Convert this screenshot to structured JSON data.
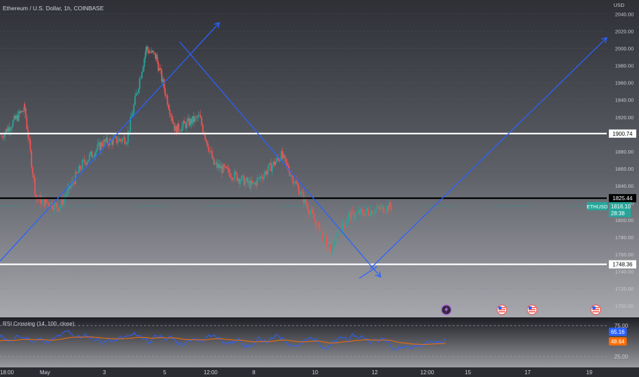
{
  "header": {
    "symbol_title": "Ethereum / U.S. Dollar, 1h, COINBASE",
    "currency": "USD"
  },
  "price_axis": {
    "ticks": [
      1700,
      1720,
      1740,
      1760,
      1780,
      1800,
      1820,
      1840,
      1860,
      1880,
      1900,
      1920,
      1940,
      1960,
      1980,
      2000,
      2020,
      2040
    ],
    "tick_labels": [
      "1700.00",
      "1720.00",
      "1740.00",
      "1760.00",
      "1780.00",
      "1800.00",
      "1820.00",
      "1840.00",
      "1860.00",
      "1880.00",
      "1900.00",
      "1920.00",
      "1940.00",
      "1960.00",
      "1980.00",
      "2000.00",
      "2020.00",
      "2040.00"
    ]
  },
  "levels": [
    {
      "name": "resistance-line",
      "price": 1900.74,
      "label": "1900.74",
      "color": "#ffffff"
    },
    {
      "name": "pivot-line",
      "price": 1825.44,
      "label": "1825.44",
      "color": "#000000"
    },
    {
      "name": "support-line",
      "price": 1748.36,
      "label": "1748.36",
      "color": "#ffffff"
    }
  ],
  "current_price": {
    "ticker": "ETHUSD",
    "price": 1816.1,
    "price_label": "1816.10",
    "countdown": "28:38",
    "color": "#26a69a"
  },
  "time_axis": {
    "labels": [
      "18:00",
      "May",
      "3",
      "5",
      "12:00",
      "8",
      "10",
      "12",
      "12:00",
      "15",
      "17",
      "19"
    ]
  },
  "event_icons": [
    "bolt-icon",
    "us-flag-icon",
    "us-flag-icon",
    "us-flag-icon"
  ],
  "rsi_panel": {
    "title": "RSI Crossing (14, 100, close)",
    "tick_labels": [
      "75.00",
      "25.00"
    ],
    "rsi_value": "65.16",
    "ma_value": "48.64",
    "rsi_color": "#2962ff",
    "ma_color": "#ff6d00"
  },
  "colors": {
    "up_candle": "#26a69a",
    "down_candle": "#ef5350",
    "drawing_lines": "#2962ff"
  },
  "chart_data": {
    "type": "candlestick",
    "title": "Ethereum / U.S. Dollar, 1h, COINBASE",
    "ylabel": "USD",
    "ylim": [
      1690,
      2045
    ],
    "x_range_hours": [
      0,
      460
    ],
    "candles_approx": [
      {
        "t": 0,
        "price": 1898
      },
      {
        "t": 24,
        "price": 1930
      },
      {
        "t": 36,
        "price": 1825
      },
      {
        "t": 60,
        "price": 1815
      },
      {
        "t": 84,
        "price": 1865
      },
      {
        "t": 105,
        "price": 1890
      },
      {
        "t": 130,
        "price": 1895
      },
      {
        "t": 150,
        "price": 2000
      },
      {
        "t": 160,
        "price": 1990
      },
      {
        "t": 180,
        "price": 1905
      },
      {
        "t": 205,
        "price": 1920
      },
      {
        "t": 220,
        "price": 1865
      },
      {
        "t": 260,
        "price": 1840
      },
      {
        "t": 290,
        "price": 1875
      },
      {
        "t": 315,
        "price": 1820
      },
      {
        "t": 340,
        "price": 1765
      },
      {
        "t": 360,
        "price": 1805
      },
      {
        "t": 380,
        "price": 1810
      },
      {
        "t": 405,
        "price": 1816
      }
    ],
    "horizontal_levels": [
      1900.74,
      1825.44,
      1748.36
    ],
    "last_price": 1816.1,
    "rsi_settings": "14, 100, close",
    "rsi_last": 65.16,
    "rsi_ma_last": 48.64
  }
}
